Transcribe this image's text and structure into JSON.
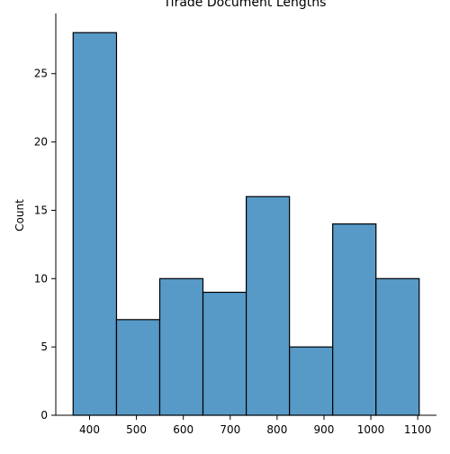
{
  "chart_data": {
    "type": "bar",
    "title": "Tirade Document Lengths",
    "xlabel": "",
    "ylabel": "Count",
    "bin_edges": [
      365,
      457.5,
      549.7,
      641.9,
      734.2,
      826.4,
      918.6,
      1010.9,
      1103.1
    ],
    "values": [
      28,
      7,
      10,
      9,
      16,
      5,
      14,
      10
    ],
    "xlim": [
      328,
      1140
    ],
    "ylim": [
      0,
      29.4
    ],
    "x_ticks": [
      400,
      500,
      600,
      700,
      800,
      900,
      1000,
      1100
    ],
    "y_ticks": [
      0,
      5,
      10,
      15,
      20,
      25
    ],
    "grid": false,
    "bar_color": "#5799c7",
    "edge_color": "#000000"
  }
}
